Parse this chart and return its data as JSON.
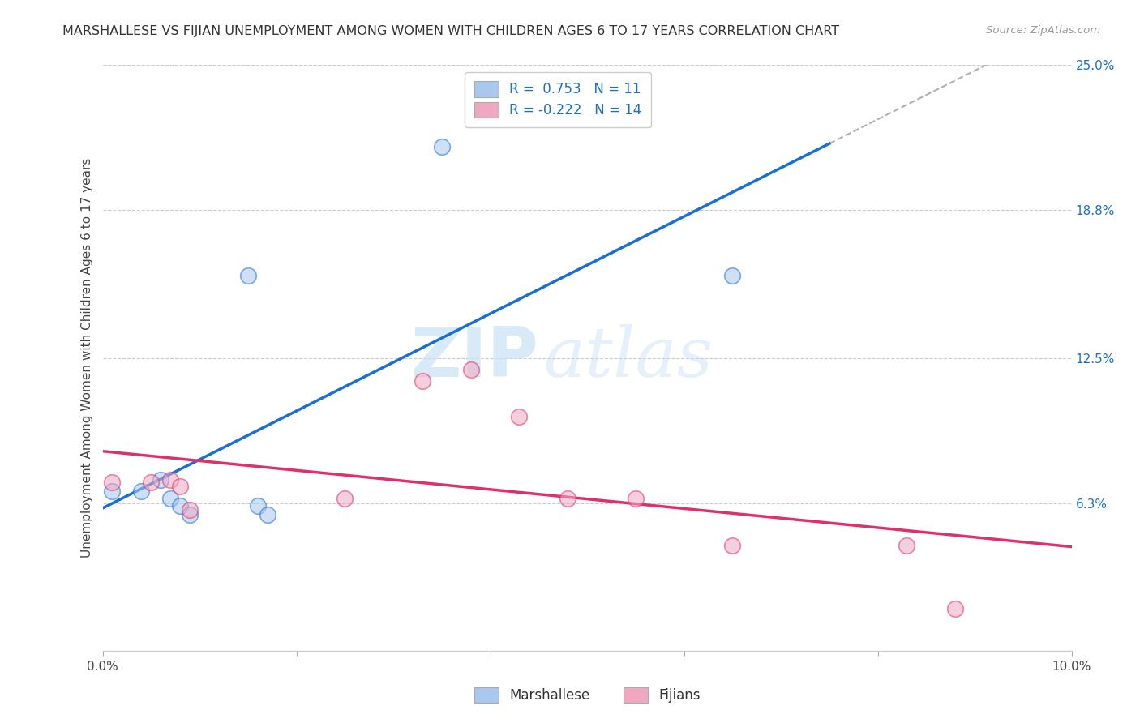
{
  "title": "MARSHALLESE VS FIJIAN UNEMPLOYMENT AMONG WOMEN WITH CHILDREN AGES 6 TO 17 YEARS CORRELATION CHART",
  "source": "Source: ZipAtlas.com",
  "ylabel": "Unemployment Among Women with Children Ages 6 to 17 years",
  "xlim": [
    0.0,
    0.1
  ],
  "ylim": [
    0.0,
    0.25
  ],
  "xticks": [
    0.0,
    0.02,
    0.04,
    0.06,
    0.08,
    0.1
  ],
  "xticklabels": [
    "0.0%",
    "",
    "",
    "",
    "",
    "10.0%"
  ],
  "yticks_right": [
    0.0,
    0.063,
    0.125,
    0.188,
    0.25
  ],
  "ytick_right_labels": [
    "",
    "6.3%",
    "12.5%",
    "18.8%",
    "25.0%"
  ],
  "marshallese_color": "#a8c8f0",
  "fijians_color": "#f0a8c0",
  "marshallese_line_color": "#1a6fd4",
  "fijians_line_color": "#e0306a",
  "R_marshallese": 0.753,
  "N_marshallese": 11,
  "R_fijians": -0.222,
  "N_fijians": 14,
  "marshallese_x": [
    0.001,
    0.004,
    0.006,
    0.007,
    0.008,
    0.009,
    0.015,
    0.016,
    0.017,
    0.035,
    0.065
  ],
  "marshallese_y": [
    0.068,
    0.068,
    0.073,
    0.065,
    0.062,
    0.058,
    0.16,
    0.062,
    0.058,
    0.215,
    0.16
  ],
  "fijians_x": [
    0.001,
    0.005,
    0.007,
    0.008,
    0.009,
    0.025,
    0.033,
    0.038,
    0.043,
    0.048,
    0.055,
    0.065,
    0.083,
    0.088
  ],
  "fijians_y": [
    0.072,
    0.072,
    0.073,
    0.07,
    0.06,
    0.065,
    0.115,
    0.12,
    0.1,
    0.065,
    0.065,
    0.045,
    0.045,
    0.018
  ],
  "watermark_zip": "ZIP",
  "watermark_atlas": "atlas",
  "background_color": "#ffffff",
  "grid_color": "#cccccc",
  "scatter_size": 200,
  "scatter_alpha": 0.55,
  "scatter_linewidth": 1.2
}
